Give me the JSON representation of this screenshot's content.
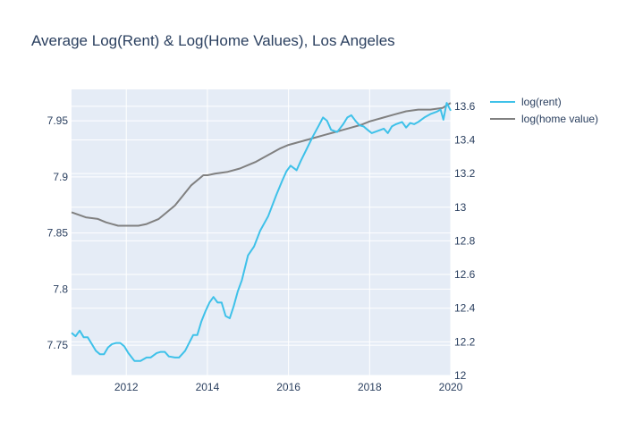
{
  "chart_data": {
    "type": "line",
    "title": "Average Log(Rent) & Log(Home Values), Los Angeles",
    "xlabel": "",
    "ylabel": "",
    "y2label": "",
    "grid": true,
    "legend_position": "top-right-outside",
    "colors": {
      "plot_bg": "#e5ecf6",
      "grid": "#ffffff",
      "text": "#2a3f5f"
    },
    "x_axis": {
      "range": [
        2010.65,
        2020.0
      ],
      "ticks": [
        2012,
        2014,
        2016,
        2018,
        2020
      ],
      "tick_labels": [
        "2012",
        "2014",
        "2016",
        "2018",
        "2020"
      ]
    },
    "y_axis_left": {
      "range": [
        7.723,
        7.978
      ],
      "ticks": [
        7.75,
        7.8,
        7.85,
        7.9,
        7.95
      ],
      "tick_labels": [
        "7.75",
        "7.8",
        "7.85",
        "7.9",
        "7.95"
      ]
    },
    "y_axis_right": {
      "range": [
        12.0,
        13.7
      ],
      "ticks": [
        12,
        12.2,
        12.4,
        12.6,
        12.8,
        13,
        13.2,
        13.4,
        13.6
      ],
      "tick_labels": [
        "12",
        "12.2",
        "12.4",
        "12.6",
        "12.8",
        "13",
        "13.2",
        "13.4",
        "13.6"
      ]
    },
    "series": [
      {
        "name": "log(rent)",
        "axis": "left",
        "color": "#3ec1e9",
        "x": [
          2010.65,
          2010.75,
          2010.85,
          2010.95,
          2011.05,
          2011.15,
          2011.25,
          2011.35,
          2011.45,
          2011.55,
          2011.65,
          2011.75,
          2011.85,
          2011.95,
          2012.05,
          2012.2,
          2012.35,
          2012.5,
          2012.6,
          2012.75,
          2012.85,
          2012.95,
          2013.05,
          2013.2,
          2013.3,
          2013.45,
          2013.55,
          2013.65,
          2013.75,
          2013.85,
          2013.95,
          2014.05,
          2014.15,
          2014.25,
          2014.35,
          2014.45,
          2014.55,
          2014.65,
          2014.75,
          2014.85,
          2015.0,
          2015.15,
          2015.3,
          2015.5,
          2015.7,
          2015.85,
          2015.95,
          2016.05,
          2016.2,
          2016.3,
          2016.45,
          2016.6,
          2016.75,
          2016.85,
          2016.95,
          2017.05,
          2017.2,
          2017.35,
          2017.45,
          2017.55,
          2017.65,
          2017.75,
          2017.85,
          2017.95,
          2018.05,
          2018.2,
          2018.35,
          2018.45,
          2018.55,
          2018.65,
          2018.8,
          2018.9,
          2019.0,
          2019.1,
          2019.2,
          2019.35,
          2019.5,
          2019.65,
          2019.75,
          2019.82,
          2019.9,
          2020.0
        ],
        "values": [
          7.761,
          7.758,
          7.763,
          7.757,
          7.757,
          7.751,
          7.745,
          7.742,
          7.742,
          7.748,
          7.751,
          7.752,
          7.752,
          7.749,
          7.743,
          7.736,
          7.736,
          7.739,
          7.739,
          7.743,
          7.744,
          7.744,
          7.74,
          7.739,
          7.739,
          7.745,
          7.752,
          7.759,
          7.759,
          7.771,
          7.78,
          7.788,
          7.793,
          7.788,
          7.788,
          7.776,
          7.774,
          7.785,
          7.798,
          7.808,
          7.83,
          7.838,
          7.852,
          7.865,
          7.884,
          7.897,
          7.905,
          7.91,
          7.906,
          7.914,
          7.925,
          7.936,
          7.946,
          7.953,
          7.95,
          7.942,
          7.94,
          7.947,
          7.953,
          7.955,
          7.95,
          7.946,
          7.945,
          7.942,
          7.939,
          7.941,
          7.943,
          7.939,
          7.945,
          7.947,
          7.949,
          7.944,
          7.948,
          7.947,
          7.949,
          7.953,
          7.956,
          7.958,
          7.96,
          7.951,
          7.966,
          7.959
        ]
      },
      {
        "name": "log(home value)",
        "axis": "right",
        "color": "#808080",
        "x": [
          2010.65,
          2011.0,
          2011.3,
          2011.5,
          2011.8,
          2012.0,
          2012.3,
          2012.5,
          2012.8,
          2013.0,
          2013.2,
          2013.4,
          2013.6,
          2013.75,
          2013.9,
          2014.0,
          2014.2,
          2014.5,
          2014.8,
          2015.0,
          2015.2,
          2015.5,
          2015.8,
          2016.0,
          2016.3,
          2016.6,
          2016.9,
          2017.2,
          2017.5,
          2017.8,
          2018.0,
          2018.3,
          2018.6,
          2018.9,
          2019.2,
          2019.5,
          2019.8,
          2020.0
        ],
        "values": [
          12.97,
          12.94,
          12.93,
          12.91,
          12.89,
          12.89,
          12.89,
          12.9,
          12.93,
          12.97,
          13.01,
          13.07,
          13.13,
          13.16,
          13.19,
          13.19,
          13.2,
          13.21,
          13.23,
          13.25,
          13.27,
          13.31,
          13.35,
          13.37,
          13.39,
          13.41,
          13.43,
          13.45,
          13.47,
          13.49,
          13.51,
          13.53,
          13.55,
          13.57,
          13.58,
          13.58,
          13.59,
          13.62
        ]
      }
    ]
  }
}
